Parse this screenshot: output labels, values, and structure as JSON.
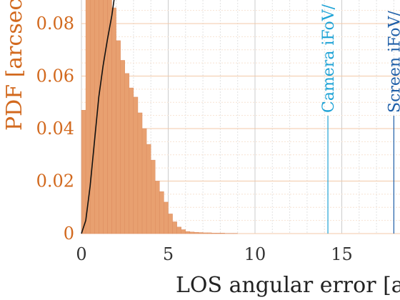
{
  "chart_data": {
    "type": "bar",
    "ylabel": "PDF [arcsec",
    "xlabel": "LOS angular error [a",
    "xlim": [
      0,
      18
    ],
    "ylim": [
      0,
      0.09
    ],
    "x_ticks": [
      "0",
      "5",
      "10",
      "15"
    ],
    "x_tick_values": [
      0,
      5,
      10,
      15
    ],
    "y_ticks": [
      "0",
      "0.02",
      "0.04",
      "0.06",
      "0.08"
    ],
    "y_tick_values": [
      0,
      0.02,
      0.04,
      0.06,
      0.08
    ],
    "bin_width": 0.25,
    "histogram": [
      0.047,
      0.09,
      0.09,
      0.09,
      0.09,
      0.09,
      0.09,
      0.086,
      0.0735,
      0.066,
      0.061,
      0.0555,
      0.052,
      0.046,
      0.04,
      0.034,
      0.028,
      0.02,
      0.016,
      0.012,
      0.0075,
      0.0045,
      0.0025,
      0.0015,
      0.0008,
      0.0006,
      0.0005,
      0.0004,
      0.0003,
      0.0003,
      0.0002,
      0.0002,
      0.0002,
      0.0001,
      0.0001,
      0.0001
    ],
    "curve": {
      "x": [
        0,
        0.25,
        0.5,
        0.75,
        1.0,
        1.25,
        1.5,
        1.75,
        1.9
      ],
      "y": [
        0,
        0.005,
        0.018,
        0.035,
        0.052,
        0.064,
        0.074,
        0.083,
        0.09
      ]
    },
    "reference_lines": [
      {
        "x": 14.2,
        "label": "Camera iFoV/",
        "color": "#1fa3d6"
      },
      {
        "x": 18.0,
        "label": "Screen iFoV/",
        "color": "#1f5fa8"
      }
    ],
    "colors": {
      "bars": "#e8a070",
      "bar_edge": "#d9875a",
      "axis_text": "#d2691e",
      "curve": "#111111"
    },
    "grid": true
  }
}
